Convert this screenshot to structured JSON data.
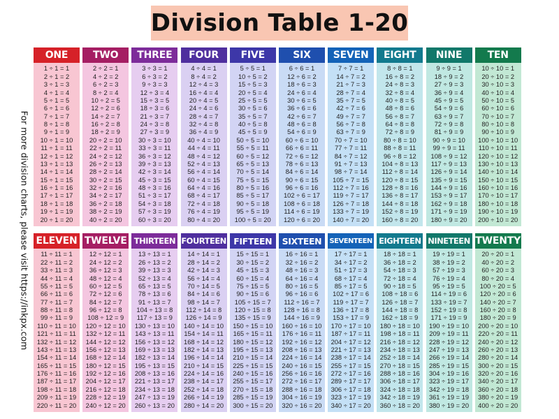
{
  "title": "Division Table 1-20",
  "side_note": "For more division charts, please visit https://inkpx.com",
  "columns": [
    {
      "divisor": 1,
      "label": "ONE",
      "header_color": "#d62128",
      "body_color": "#f8c6d2"
    },
    {
      "divisor": 2,
      "label": "TWO",
      "header_color": "#a51e63",
      "body_color": "#f4c6e0"
    },
    {
      "divisor": 3,
      "label": "THREE",
      "header_color": "#7d2c9a",
      "body_color": "#e6cdf0"
    },
    {
      "divisor": 4,
      "label": "FOUR",
      "header_color": "#4f2f9e",
      "body_color": "#dad0f2"
    },
    {
      "divisor": 5,
      "label": "FIVE",
      "header_color": "#3d37a8",
      "body_color": "#d2d4f4"
    },
    {
      "divisor": 6,
      "label": "SIX",
      "header_color": "#1f4fae",
      "body_color": "#c9dbf5"
    },
    {
      "divisor": 7,
      "label": "SEVEN",
      "header_color": "#1463b8",
      "body_color": "#c4e0f6"
    },
    {
      "divisor": 8,
      "label": "EIGHT",
      "header_color": "#127a8e",
      "body_color": "#c2e6ec"
    },
    {
      "divisor": 9,
      "label": "NINE",
      "header_color": "#11786a",
      "body_color": "#c0e8e2"
    },
    {
      "divisor": 10,
      "label": "TEN",
      "header_color": "#137a4d",
      "body_color": "#c2e8d4"
    },
    {
      "divisor": 11,
      "label": "ELEVEN",
      "header_color": "#d62128",
      "body_color": "#f8c6d2"
    },
    {
      "divisor": 12,
      "label": "TWELVE",
      "header_color": "#a51e63",
      "body_color": "#f4c6e0"
    },
    {
      "divisor": 13,
      "label": "THIRTEEN",
      "header_color": "#7d2c9a",
      "body_color": "#e6cdf0"
    },
    {
      "divisor": 14,
      "label": "FOURTEEN",
      "header_color": "#4f2f9e",
      "body_color": "#dad0f2"
    },
    {
      "divisor": 15,
      "label": "FIFTEEN",
      "header_color": "#3d37a8",
      "body_color": "#d2d4f4"
    },
    {
      "divisor": 16,
      "label": "SIXTEEN",
      "header_color": "#1f4fae",
      "body_color": "#c9dbf5"
    },
    {
      "divisor": 17,
      "label": "SEVENTEEN",
      "header_color": "#1463b8",
      "body_color": "#c4e0f6"
    },
    {
      "divisor": 18,
      "label": "EIGHTEEN",
      "header_color": "#127a8e",
      "body_color": "#c2e6ec"
    },
    {
      "divisor": 19,
      "label": "NINETEEN",
      "header_color": "#11786a",
      "body_color": "#c0e8e2"
    },
    {
      "divisor": 20,
      "label": "TWENTY",
      "header_color": "#137a4d",
      "body_color": "#c2e8d4"
    }
  ],
  "quotients": [
    1,
    2,
    3,
    4,
    5,
    6,
    7,
    8,
    9,
    10,
    11,
    12,
    13,
    14,
    15,
    16,
    17,
    18,
    19,
    20
  ]
}
